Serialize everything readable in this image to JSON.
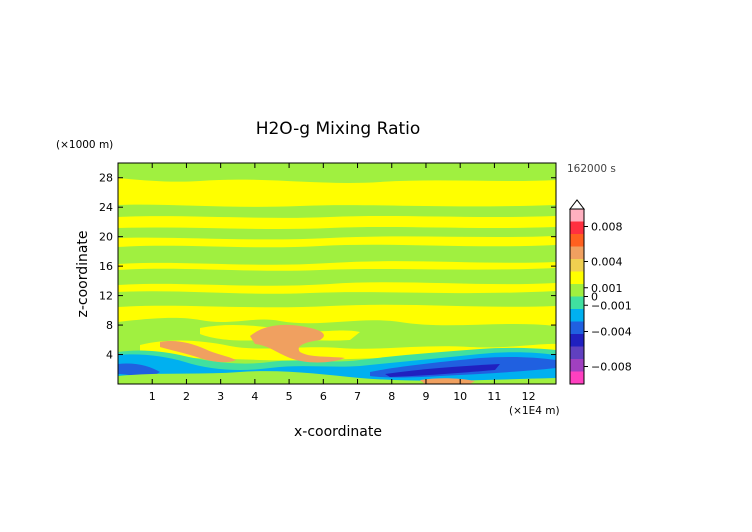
{
  "chart_data": {
    "type": "heatmap",
    "title": "H2O-g Mixing Ratio",
    "xlabel": "x-coordinate",
    "ylabel": "z-coordinate",
    "x_unit_label": "(×1E4 m)",
    "y_unit_label": "(×1000 m)",
    "time_label": "162000 s",
    "xlim": [
      0,
      12.8
    ],
    "ylim": [
      0,
      30
    ],
    "x_ticks": [
      1,
      2,
      3,
      4,
      5,
      6,
      7,
      8,
      9,
      10,
      11,
      12
    ],
    "y_ticks": [
      4,
      8,
      12,
      16,
      20,
      24,
      28
    ],
    "colorbar": {
      "range": [
        -0.01,
        0.01
      ],
      "tick_values": [
        0.008,
        0.004,
        0.001,
        0,
        -0.001,
        -0.004,
        -0.008
      ],
      "tick_labels": [
        "0.008",
        "0.004",
        "0.001",
        "0",
        "−0.001",
        "−0.004",
        "−0.008"
      ],
      "colors": [
        "#ffb0c0",
        "#ff3040",
        "#ff6020",
        "#f0a060",
        "#f0d050",
        "#ffff00",
        "#a0f040",
        "#40e0a0",
        "#00b0f0",
        "#2060e0",
        "#2020c0",
        "#6040c0",
        "#a040c0",
        "#ff40c0"
      ]
    },
    "level_colors": {
      "positive_high": "#f0a060",
      "positive_low": "#ffff00",
      "zero_band": "#a0f040",
      "negative_low": "#40e0a0",
      "negative_mid": "#00b0f0",
      "negative_high": "#2060e0"
    }
  }
}
